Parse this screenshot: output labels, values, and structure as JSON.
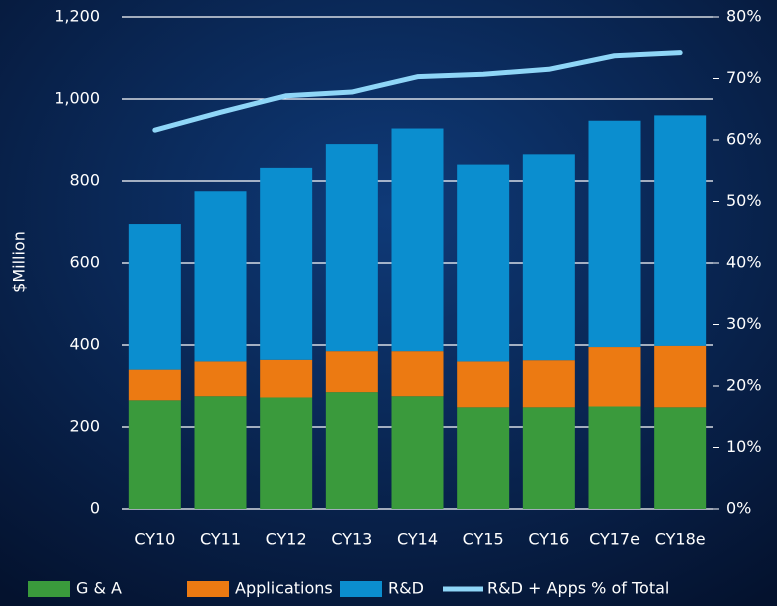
{
  "chart_data": {
    "type": "bar",
    "y_label": "$Million",
    "categories": [
      "CY10",
      "CY11",
      "CY12",
      "CY13",
      "CY14",
      "CY15",
      "CY16",
      "CY17e",
      "CY18e"
    ],
    "series": [
      {
        "name": "G & A",
        "color": "#3a9a3c",
        "values": [
          265,
          275,
          272,
          285,
          275,
          248,
          248,
          250,
          248
        ]
      },
      {
        "name": "Applications",
        "color": "#ec7a12",
        "values": [
          75,
          85,
          92,
          100,
          110,
          112,
          115,
          145,
          150
        ]
      },
      {
        "name": "R&D",
        "color": "#0b8ecf",
        "values": [
          355,
          415,
          468,
          505,
          543,
          480,
          502,
          552,
          562
        ]
      },
      {
        "name": "R&D + Apps % of Total",
        "color": "#8fd6f7",
        "type": "line",
        "axis": "y2",
        "values": [
          61.6,
          64.5,
          67.2,
          67.8,
          70.3,
          70.7,
          71.5,
          73.7,
          74.2
        ]
      }
    ],
    "stacked": true,
    "ylim": [
      0,
      1200
    ],
    "yticks": [
      0,
      200,
      400,
      600,
      800,
      {
        "value": 1000,
        "label": "1,000"
      },
      {
        "value": 1200,
        "label": "1,200"
      }
    ],
    "y2lim": [
      0,
      80
    ],
    "y2ticks": [
      {
        "value": 0,
        "label": "0%"
      },
      {
        "value": 10,
        "label": "10%"
      },
      {
        "value": 20,
        "label": "20%"
      },
      {
        "value": 30,
        "label": "30%"
      },
      {
        "value": 40,
        "label": "40%"
      },
      {
        "value": 50,
        "label": "50%"
      },
      {
        "value": 60,
        "label": "60%"
      },
      {
        "value": 70,
        "label": "70%"
      },
      {
        "value": 80,
        "label": "80%"
      }
    ],
    "grid": true,
    "legend": "bottom"
  }
}
